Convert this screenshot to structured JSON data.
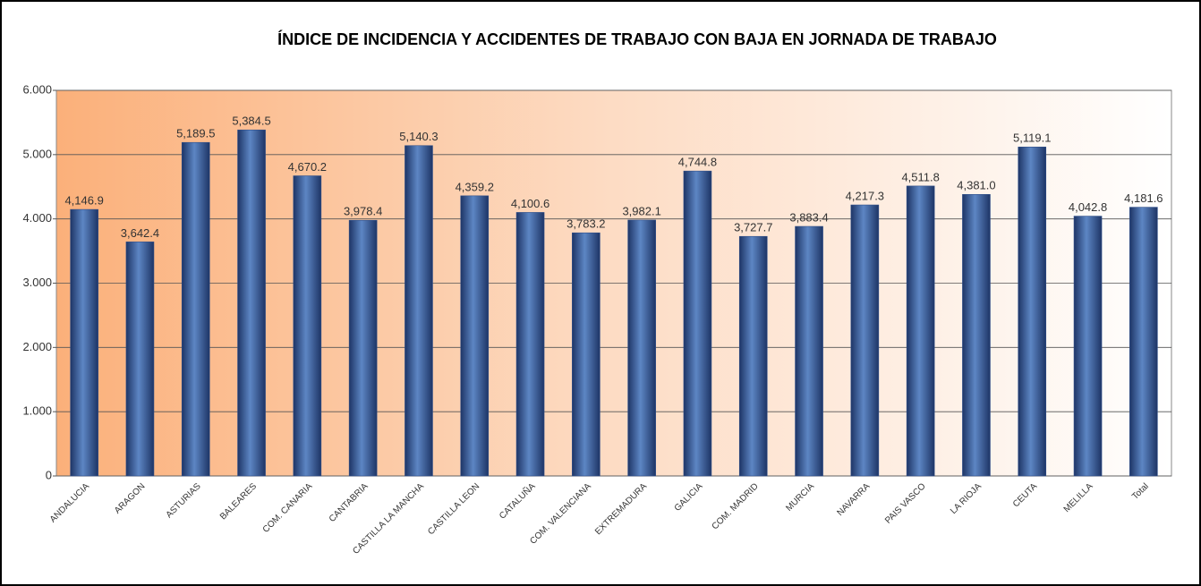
{
  "chart_data": {
    "type": "bar",
    "title": "ÍNDICE DE INCIDENCIA Y ACCIDENTES DE TRABAJO CON BAJA EN JORNADA DE TRABAJO",
    "categories": [
      "ANDALUCIA",
      "ARAGON",
      "ASTURIAS",
      "BALEARES",
      "COM. CANARIA",
      "CANTABRIA",
      "CASTILLA LA MANCHA",
      "CASTILLA LEON",
      "CATALUÑA",
      "COM. VALENCIANA",
      "EXTREMADURA",
      "GALICIA",
      "COM. MADRID",
      "MURCIA",
      "NAVARRA",
      "PAIS VASCO",
      "LA RIOJA",
      "CEUTA",
      "MELILLA",
      "Total"
    ],
    "values": [
      4146.9,
      3642.4,
      5189.5,
      5384.5,
      4670.2,
      3978.4,
      5140.3,
      4359.2,
      4100.6,
      3783.2,
      3982.1,
      4744.8,
      3727.7,
      3883.4,
      4217.3,
      4511.8,
      4381.0,
      5119.1,
      4042.8,
      4181.6
    ],
    "value_labels": [
      "4,146.9",
      "3,642.4",
      "5,189.5",
      "5,384.5",
      "4,670.2",
      "3,978.4",
      "5,140.3",
      "4,359.2",
      "4,100.6",
      "3,783.2",
      "3,982.1",
      "4,744.8",
      "3,727.7",
      "3,883.4",
      "4,217.3",
      "4,511.8",
      "4,381.0",
      "5,119.1",
      "4,042.8",
      "4,181.6"
    ],
    "color": "#2f4f8a",
    "ylim": [
      0,
      6000
    ],
    "yticks": [
      0,
      {
        "value": 1000,
        "label": "1.000"
      },
      {
        "value": 2000,
        "label": "2.000"
      },
      {
        "value": 3000,
        "label": "3.000"
      },
      {
        "value": 4000,
        "label": "4.000"
      },
      {
        "value": 5000,
        "label": "5.000"
      },
      {
        "value": 6000,
        "label": "6.000"
      }
    ],
    "grid": true
  }
}
